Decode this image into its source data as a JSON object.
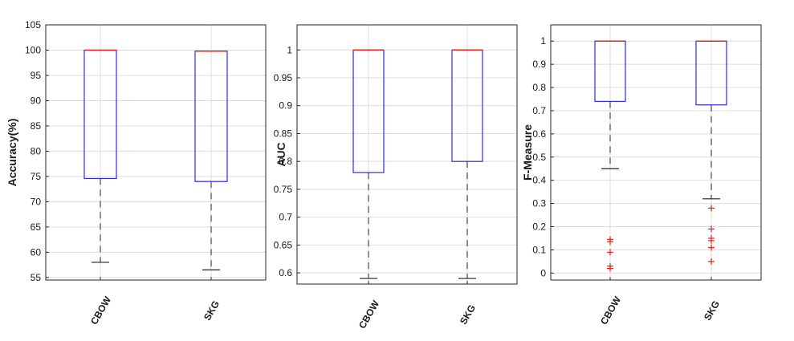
{
  "chart_data": [
    {
      "type": "boxplot",
      "ylabel": "Accuracy(%)",
      "ylim": [
        54.5,
        105
      ],
      "yticks": [
        55,
        60,
        65,
        70,
        75,
        80,
        85,
        90,
        95,
        100,
        105
      ],
      "grid": true,
      "categories": [
        "CBOW",
        "SKG"
      ],
      "boxes": [
        {
          "category": "CBOW",
          "whisker_low": 58,
          "q1": 74.6,
          "median": 100,
          "q3": 100,
          "whisker_high": 100,
          "outliers": []
        },
        {
          "category": "SKG",
          "whisker_low": 56.5,
          "q1": 74,
          "median": 99.8,
          "q3": 99.8,
          "whisker_high": 99.8,
          "outliers": []
        }
      ]
    },
    {
      "type": "boxplot",
      "ylabel": "AUC",
      "ylim": [
        0.58,
        1.045
      ],
      "yticks": [
        0.6,
        0.65,
        0.7,
        0.75,
        0.8,
        0.85,
        0.9,
        0.95,
        1
      ],
      "grid": true,
      "categories": [
        "CBOW",
        "SKG"
      ],
      "boxes": [
        {
          "category": "CBOW",
          "whisker_low": 0.59,
          "q1": 0.78,
          "median": 1,
          "q3": 1,
          "whisker_high": 1,
          "outliers": []
        },
        {
          "category": "SKG",
          "whisker_low": 0.59,
          "q1": 0.8,
          "median": 1,
          "q3": 1,
          "whisker_high": 1,
          "outliers": []
        }
      ]
    },
    {
      "type": "boxplot",
      "ylabel": "F-Measure",
      "ylim": [
        -0.03,
        1.07
      ],
      "yticks": [
        0,
        0.1,
        0.2,
        0.3,
        0.4,
        0.5,
        0.6,
        0.7,
        0.8,
        0.9,
        1
      ],
      "grid": true,
      "categories": [
        "CBOW",
        "SKG"
      ],
      "boxes": [
        {
          "category": "CBOW",
          "whisker_low": 0.45,
          "q1": 0.74,
          "median": 1,
          "q3": 1,
          "whisker_high": 1,
          "outliers": [
            0.145,
            0.135,
            0.09,
            0.03,
            0.02
          ]
        },
        {
          "category": "SKG",
          "whisker_low": 0.32,
          "q1": 0.725,
          "median": 1,
          "q3": 1,
          "whisker_high": 1,
          "outliers": [
            0.28,
            0.19,
            0.15,
            0.14,
            0.11,
            0.05
          ]
        }
      ]
    }
  ],
  "colors": {
    "box": "#2c2cd8",
    "median": "#e0241c",
    "whisker": "#222222",
    "outlier": "#e0241c",
    "grid": "#dcdcdc",
    "axis": "#262626"
  }
}
